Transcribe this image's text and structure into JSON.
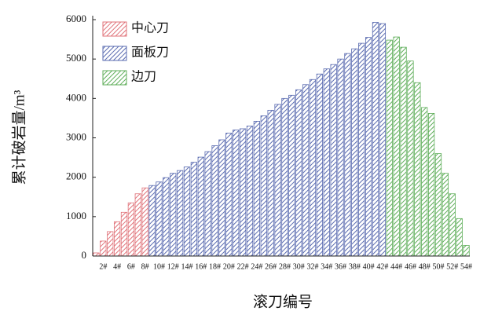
{
  "chart_data": {
    "type": "bar",
    "x_label": "滚刀编号",
    "y_label": "累计破岩量/m³",
    "categories": [
      null,
      "2#",
      null,
      "4#",
      null,
      "6#",
      null,
      "8#",
      null,
      "10#",
      null,
      "12#",
      null,
      "14#",
      null,
      "16#",
      null,
      "18#",
      null,
      "20#",
      null,
      "22#",
      null,
      "24#",
      null,
      "26#",
      null,
      "28#",
      null,
      "30#",
      null,
      "32#",
      null,
      "34#",
      null,
      "36#",
      null,
      "38#",
      null,
      "40#",
      null,
      "42#",
      null,
      "44#",
      null,
      "46#",
      null,
      "48#",
      null,
      "50#",
      null,
      "52#",
      null,
      "54#"
    ],
    "series": [
      {
        "name": "中心刀",
        "color": "#e0737a",
        "values": [
          80,
          380,
          620,
          870,
          1110,
          1350,
          1580,
          1730,
          null,
          null,
          null,
          null,
          null,
          null,
          null,
          null,
          null,
          null,
          null,
          null,
          null,
          null,
          null,
          null,
          null,
          null,
          null,
          null,
          null,
          null,
          null,
          null,
          null,
          null,
          null,
          null,
          null,
          null,
          null,
          null,
          null,
          null,
          null,
          null,
          null,
          null,
          null,
          null,
          null,
          null,
          null,
          null,
          null,
          null
        ]
      },
      {
        "name": "面板刀",
        "color": "#5a6bb0",
        "values": [
          null,
          null,
          null,
          null,
          null,
          null,
          null,
          null,
          1790,
          1880,
          1990,
          2100,
          2170,
          2260,
          2380,
          2510,
          2650,
          2800,
          2950,
          3120,
          3200,
          3230,
          3300,
          3420,
          3560,
          3700,
          3850,
          4000,
          4080,
          4220,
          4350,
          4480,
          4620,
          4750,
          4860,
          5000,
          5140,
          5260,
          5400,
          5550,
          5930,
          5900,
          null,
          null,
          null,
          null,
          null,
          null,
          null,
          null,
          null,
          null,
          null,
          null
        ]
      },
      {
        "name": "边刀",
        "color": "#5fae5a",
        "values": [
          null,
          null,
          null,
          null,
          null,
          null,
          null,
          null,
          null,
          null,
          null,
          null,
          null,
          null,
          null,
          null,
          null,
          null,
          null,
          null,
          null,
          null,
          null,
          null,
          null,
          null,
          null,
          null,
          null,
          null,
          null,
          null,
          null,
          null,
          null,
          null,
          null,
          null,
          null,
          null,
          null,
          null,
          5480,
          5560,
          5300,
          4950,
          4400,
          3770,
          3620,
          2600,
          2100,
          1580,
          950,
          270
        ]
      }
    ],
    "ylim": [
      0,
      6000
    ],
    "yticks": [
      0,
      1000,
      2000,
      3000,
      4000,
      5000,
      6000
    ],
    "legend": "top-left",
    "hatch": true
  }
}
